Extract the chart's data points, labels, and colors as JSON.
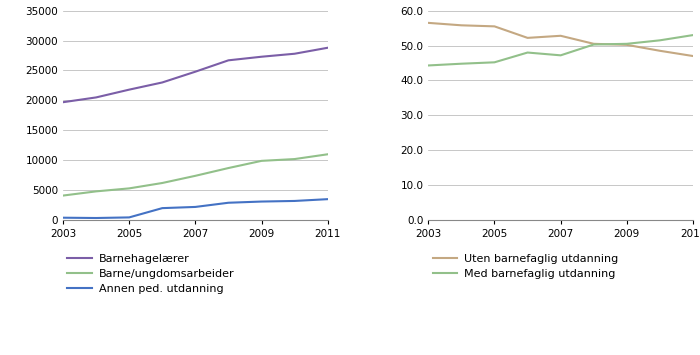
{
  "years": [
    2003,
    2004,
    2005,
    2006,
    2007,
    2008,
    2009,
    2010,
    2011
  ],
  "left": {
    "barnehagelarer": [
      19700,
      20500,
      21800,
      23000,
      24800,
      26700,
      27300,
      27800,
      28800
    ],
    "barne_ungdom": [
      4100,
      4800,
      5300,
      6200,
      7400,
      8700,
      9900,
      10200,
      11000
    ],
    "annen_ped": [
      400,
      350,
      450,
      2000,
      2200,
      2900,
      3100,
      3200,
      3500
    ],
    "ylim": [
      0,
      35000
    ],
    "yticks": [
      0,
      5000,
      10000,
      15000,
      20000,
      25000,
      30000,
      35000
    ],
    "colors": {
      "barnehagelarer": "#7b5ea7",
      "barne_ungdom": "#92c08a",
      "annen_ped": "#4472c4"
    },
    "labels": [
      "Barnehagelærer",
      "Barne/ungdomsarbeider",
      "Annen ped. utdanning"
    ]
  },
  "right": {
    "uten_barnefaglig": [
      56.5,
      55.8,
      55.5,
      52.2,
      52.8,
      50.5,
      50.2,
      48.5,
      47.0
    ],
    "med_barnefaglig": [
      44.3,
      44.8,
      45.2,
      48.0,
      47.2,
      50.3,
      50.5,
      51.5,
      53.0
    ],
    "ylim": [
      0,
      60
    ],
    "yticks": [
      0.0,
      10.0,
      20.0,
      30.0,
      40.0,
      50.0,
      60.0
    ],
    "colors": {
      "uten_barnefaglig": "#c4a882",
      "med_barnefaglig": "#92c08a"
    },
    "labels": [
      "Uten barnefaglig utdanning",
      "Med barnefaglig utdanning"
    ]
  },
  "x_ticks": [
    2003,
    2005,
    2007,
    2009,
    2011
  ],
  "background_color": "#ffffff",
  "grid_color": "#b0b0b0",
  "tick_fontsize": 7.5,
  "legend_fontsize": 8
}
